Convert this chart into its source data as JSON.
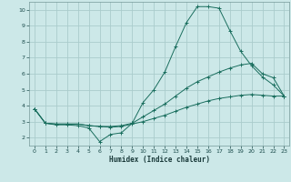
{
  "xlabel": "Humidex (Indice chaleur)",
  "background_color": "#cce8e8",
  "grid_color": "#aacccc",
  "line_color": "#1a6e5e",
  "xlim": [
    -0.5,
    23.5
  ],
  "ylim": [
    1.5,
    10.5
  ],
  "yticks": [
    2,
    3,
    4,
    5,
    6,
    7,
    8,
    9,
    10
  ],
  "xticks": [
    0,
    1,
    2,
    3,
    4,
    5,
    6,
    7,
    8,
    9,
    10,
    11,
    12,
    13,
    14,
    15,
    16,
    17,
    18,
    19,
    20,
    21,
    22,
    23
  ],
  "series1_x": [
    0,
    1,
    2,
    3,
    4,
    5,
    6,
    7,
    8,
    9,
    10,
    11,
    12,
    13,
    14,
    15,
    16,
    17,
    18,
    19,
    20,
    21,
    22,
    23
  ],
  "series1_y": [
    3.8,
    2.9,
    2.8,
    2.8,
    2.75,
    2.6,
    1.75,
    2.2,
    2.3,
    2.9,
    4.2,
    5.0,
    6.1,
    7.7,
    9.2,
    10.2,
    10.2,
    10.1,
    8.7,
    7.4,
    6.5,
    5.8,
    5.3,
    4.6
  ],
  "series2_x": [
    0,
    1,
    2,
    3,
    4,
    5,
    6,
    7,
    8,
    9,
    10,
    11,
    12,
    13,
    14,
    15,
    16,
    17,
    18,
    19,
    20,
    21,
    22,
    23
  ],
  "series2_y": [
    3.8,
    2.9,
    2.85,
    2.85,
    2.85,
    2.75,
    2.7,
    2.7,
    2.75,
    2.9,
    3.3,
    3.7,
    4.1,
    4.6,
    5.1,
    5.5,
    5.8,
    6.1,
    6.35,
    6.55,
    6.65,
    6.0,
    5.75,
    4.6
  ],
  "series3_x": [
    0,
    1,
    2,
    3,
    4,
    5,
    6,
    7,
    8,
    9,
    10,
    11,
    12,
    13,
    14,
    15,
    16,
    17,
    18,
    19,
    20,
    21,
    22,
    23
  ],
  "series3_y": [
    3.8,
    2.9,
    2.85,
    2.85,
    2.85,
    2.75,
    2.7,
    2.65,
    2.7,
    2.85,
    3.0,
    3.2,
    3.4,
    3.65,
    3.9,
    4.1,
    4.3,
    4.45,
    4.55,
    4.65,
    4.7,
    4.65,
    4.6,
    4.6
  ]
}
